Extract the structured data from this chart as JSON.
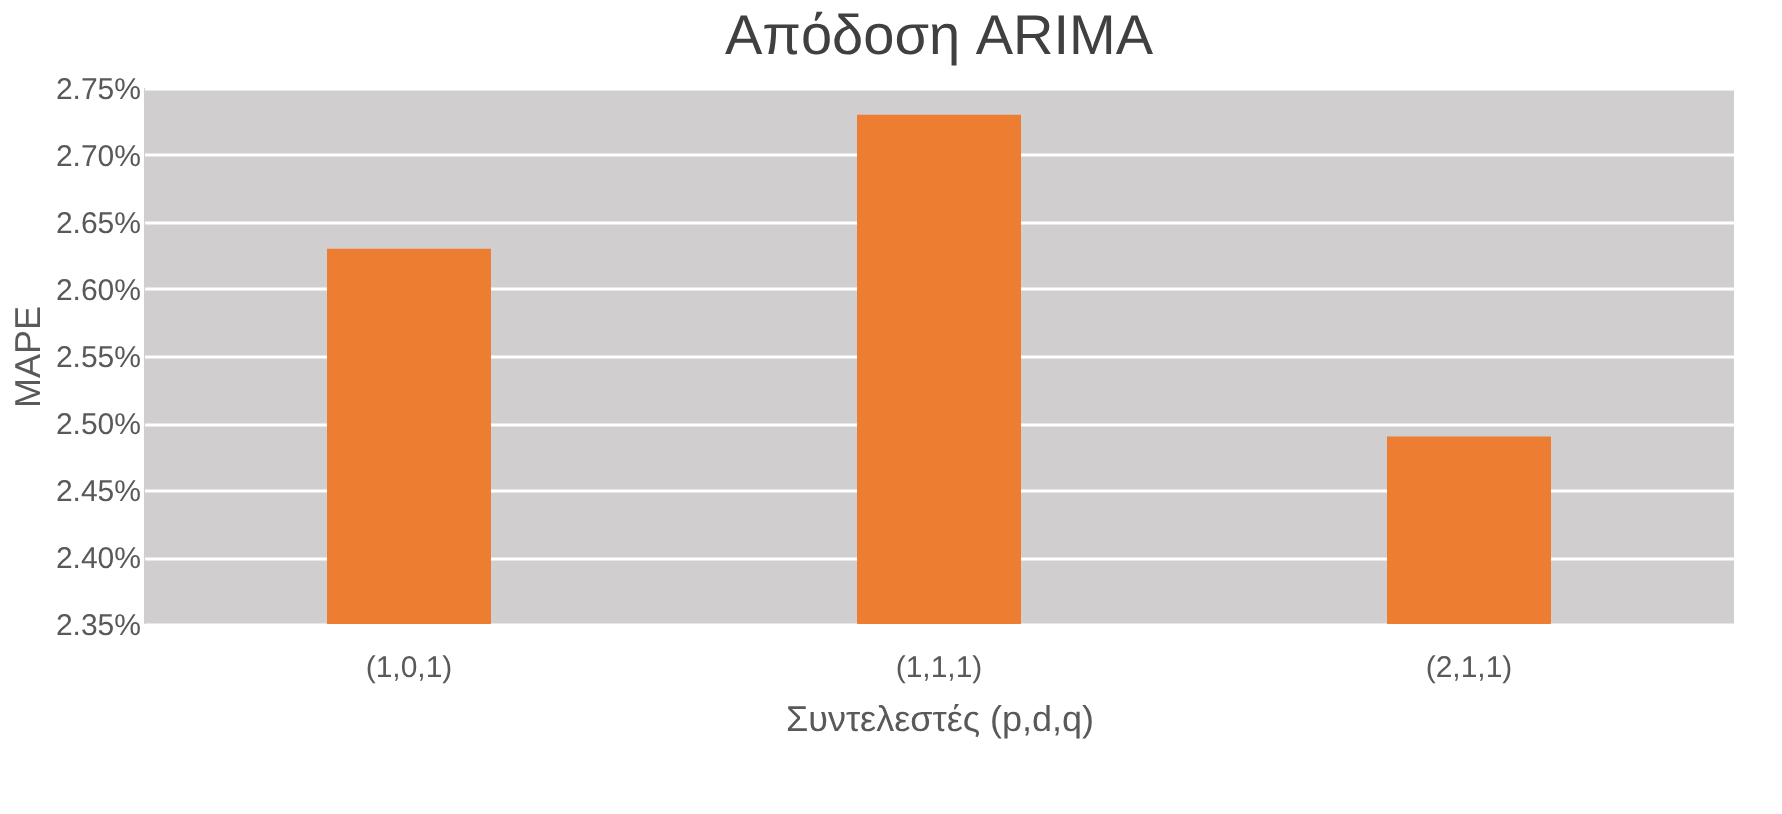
{
  "chart_data": {
    "type": "bar",
    "title": "Απόδοση ARIMA",
    "xlabel": "Συντελεστές (p,d,q)",
    "ylabel": "MAPE",
    "categories": [
      "(1,0,1)",
      "(1,1,1)",
      "(2,1,1)"
    ],
    "series": [
      {
        "color": "#ed7d31",
        "values": [
          2.63,
          2.73,
          2.49
        ]
      }
    ],
    "ylim": [
      2.35,
      2.75
    ],
    "yticks": [
      {
        "value": 2.35,
        "label": "2.35%"
      },
      {
        "value": 2.4,
        "label": "2.40%"
      },
      {
        "value": 2.45,
        "label": "2.45%"
      },
      {
        "value": 2.5,
        "label": "2.50%"
      },
      {
        "value": 2.55,
        "label": "2.55%"
      },
      {
        "value": 2.6,
        "label": "2.60%"
      },
      {
        "value": 2.65,
        "label": "2.65%"
      },
      {
        "value": 2.7,
        "label": "2.70%"
      },
      {
        "value": 2.75,
        "label": "2.75%"
      }
    ],
    "grid": "y",
    "legend": false
  }
}
